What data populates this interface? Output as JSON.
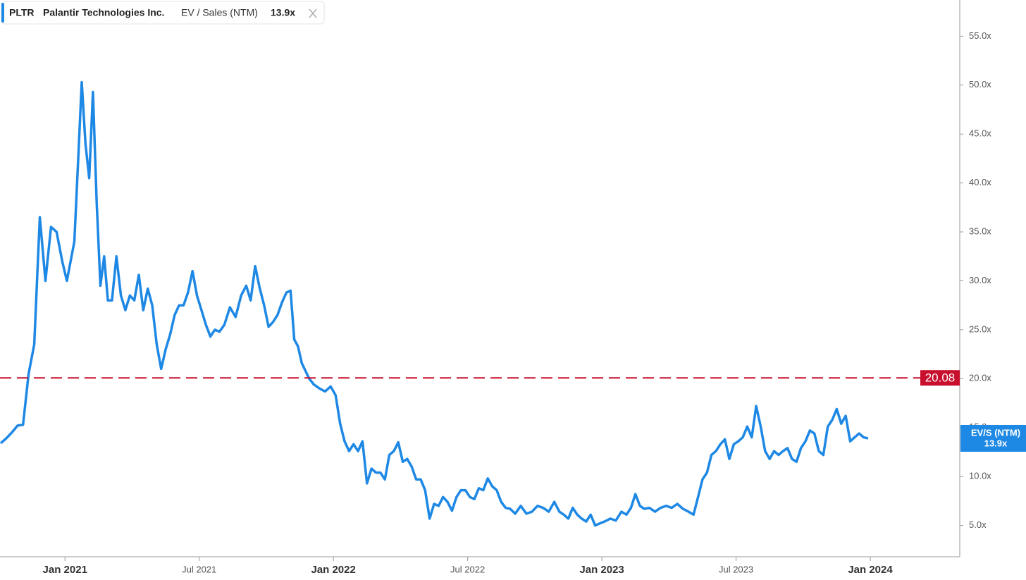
{
  "chart_data": {
    "type": "line",
    "header": {
      "ticker": "PLTR",
      "company": "Palantir Technologies Inc.",
      "metric": "EV / Sales (NTM)",
      "last": "13.9x"
    },
    "badge": {
      "name": "EV/S (NTM)",
      "last": "13.9x"
    },
    "reference_line": {
      "value": 20.08,
      "color": "#c8102e"
    },
    "xlim": [
      "2020-10",
      "2024-05"
    ],
    "xticks": [
      {
        "value": "2021-01",
        "label": "Jan 2021"
      },
      {
        "value": "2021-07",
        "label": "Jul 2021"
      },
      {
        "value": "2022-01",
        "label": "Jan 2022"
      },
      {
        "value": "2022-07",
        "label": "Jul 2022"
      },
      {
        "value": "2023-01",
        "label": "Jan 2023"
      },
      {
        "value": "2023-07",
        "label": "Jul 2023"
      },
      {
        "value": "2024-01",
        "label": "Jan 2024"
      }
    ],
    "ylim": [
      1.8,
      58.7
    ],
    "yticks": [
      {
        "value": 5,
        "label": "5.0x"
      },
      {
        "value": 10,
        "label": "10.0x"
      },
      {
        "value": 15,
        "label": "15.0x"
      },
      {
        "value": 20,
        "label": "20.0x"
      },
      {
        "value": 25,
        "label": "25.0x"
      },
      {
        "value": 30,
        "label": "30.0x"
      },
      {
        "value": 35,
        "label": "35.0x"
      },
      {
        "value": 40,
        "label": "40.0x"
      },
      {
        "value": 45,
        "label": "45.0x"
      },
      {
        "value": 50,
        "label": "50.0x"
      },
      {
        "value": 55,
        "label": "55.0x"
      }
    ],
    "series": [
      {
        "name": "PLTR",
        "color": "#1e88e5",
        "points": [
          {
            "x": "2020-10",
            "values": [
              13.4,
              13.9,
              14.5,
              15.2
            ]
          },
          {
            "x": "2020-11",
            "values": [
              15.3,
              20.5,
              23.5,
              36.5
            ]
          },
          {
            "x": "2020-12",
            "values": [
              30,
              35.5,
              35,
              32
            ]
          },
          {
            "x": "2021-01",
            "values": [
              30.0,
              32.0,
              34.0,
              42.0,
              50.3,
              44.0
            ]
          },
          {
            "x": "2021-02",
            "values": [
              40.5,
              49.3,
              38,
              29.5,
              32.5,
              28.0
            ]
          },
          {
            "x": "2021-03",
            "values": [
              28.0,
              32.5,
              28.5,
              27.0,
              28.5
            ]
          },
          {
            "x": "2021-04",
            "values": [
              28.0,
              30.6,
              27.0,
              29.2,
              27.5
            ]
          },
          {
            "x": "2021-05",
            "values": [
              23.5,
              21.0,
              23.0,
              24.5,
              26.5
            ]
          },
          {
            "x": "2021-06",
            "values": [
              27.5,
              27.5,
              28.8,
              31.0,
              28.5
            ]
          },
          {
            "x": "2021-07",
            "values": [
              27.0,
              25.5,
              24.3,
              25.0,
              24.8
            ]
          },
          {
            "x": "2021-08",
            "values": [
              25.5,
              27.3,
              26.3,
              28.5
            ]
          },
          {
            "x": "2021-09",
            "values": [
              29.5,
              28.0,
              31.5,
              29.3,
              27.5
            ]
          },
          {
            "x": "2021-10",
            "values": [
              25.3,
              25.8,
              26.5,
              27.8,
              28.8
            ]
          },
          {
            "x": "2021-11",
            "values": [
              29.0,
              24.0,
              23.3,
              21.6,
              20.8,
              20.0
            ]
          },
          {
            "x": "2021-12",
            "values": [
              19.4,
              19.0,
              18.7,
              19.2
            ]
          },
          {
            "x": "2022-01",
            "values": [
              18.3,
              15.4,
              13.6,
              12.6,
              13.3
            ]
          },
          {
            "x": "2022-02",
            "values": [
              12.6,
              13.6,
              9.3,
              10.8,
              10.4
            ]
          },
          {
            "x": "2022-03",
            "values": [
              10.4,
              9.7,
              12.2,
              12.6,
              13.5
            ]
          },
          {
            "x": "2022-04",
            "values": [
              11.5,
              11.8,
              11.0,
              9.7,
              9.7
            ]
          },
          {
            "x": "2022-05",
            "values": [
              8.6,
              5.7,
              7.2,
              7.0,
              7.9
            ]
          },
          {
            "x": "2022-06",
            "values": [
              7.4,
              6.5,
              7.9,
              8.6,
              8.6
            ]
          },
          {
            "x": "2022-07",
            "values": [
              7.9,
              7.7,
              8.8,
              8.6,
              9.8
            ]
          },
          {
            "x": "2022-08",
            "values": [
              9.0,
              8.6,
              7.4,
              6.8,
              6.7
            ]
          },
          {
            "x": "2022-09",
            "values": [
              6.2,
              7.0,
              6.2,
              6.4
            ]
          },
          {
            "x": "2022-10",
            "values": [
              7.0,
              6.8,
              6.4,
              7.4
            ]
          },
          {
            "x": "2022-11",
            "values": [
              6.4,
              6.1,
              5.7,
              6.8,
              6.1
            ]
          },
          {
            "x": "2022-12",
            "values": [
              5.7,
              5.4,
              6.1,
              5.0,
              5.2
            ]
          },
          {
            "x": "2023-01",
            "values": [
              5.4,
              5.7,
              5.5,
              6.4
            ]
          },
          {
            "x": "2023-02",
            "values": [
              6.1,
              6.8,
              8.2,
              7.0,
              6.7
            ]
          },
          {
            "x": "2023-03",
            "values": [
              6.8,
              6.4,
              6.8,
              7.0
            ]
          },
          {
            "x": "2023-04",
            "values": [
              6.8,
              7.2,
              6.7,
              6.4
            ]
          },
          {
            "x": "2023-05",
            "values": [
              6.1,
              7.9,
              9.7,
              10.4,
              12.2
            ]
          },
          {
            "x": "2023-06",
            "values": [
              12.6,
              13.3,
              13.8,
              11.8,
              13.3
            ]
          },
          {
            "x": "2023-07",
            "values": [
              13.6,
              14.0,
              15.1,
              14.0,
              17.2
            ]
          },
          {
            "x": "2023-08",
            "values": [
              15.1,
              12.6,
              11.8,
              12.6,
              12.2
            ]
          },
          {
            "x": "2023-09",
            "values": [
              12.6,
              12.9,
              11.8,
              11.5,
              12.9
            ]
          },
          {
            "x": "2023-10",
            "values": [
              13.6,
              14.7,
              14.4,
              12.6,
              12.2
            ]
          },
          {
            "x": "2023-11",
            "values": [
              15.1,
              15.8,
              16.9,
              15.4,
              16.2
            ]
          },
          {
            "x": "2023-12",
            "values": [
              13.6,
              14.0,
              14.4,
              14.0,
              13.9
            ]
          }
        ]
      }
    ]
  }
}
